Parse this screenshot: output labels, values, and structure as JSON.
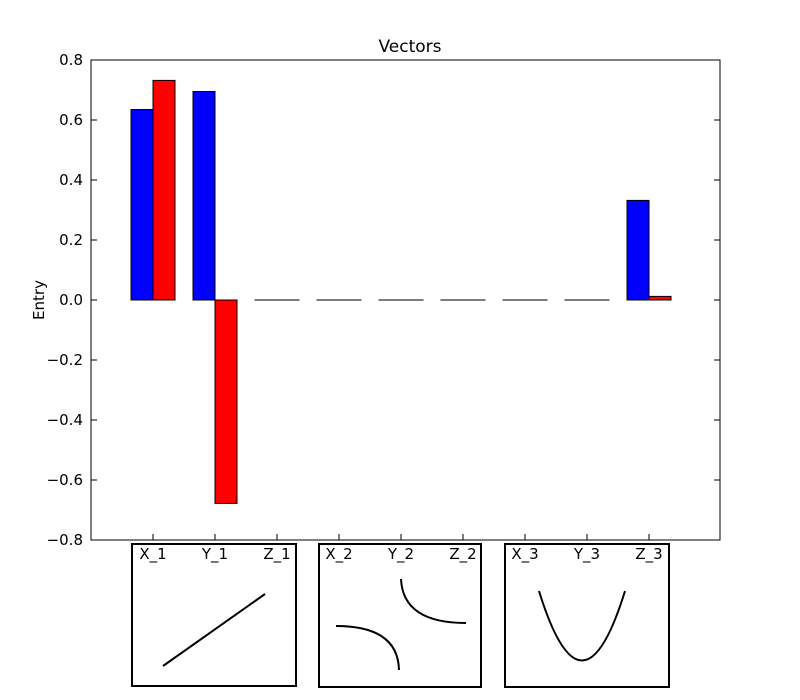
{
  "chart_data": {
    "type": "bar",
    "title": "Vectors",
    "xlabel": "",
    "ylabel": "Entry",
    "ylim": [
      -0.8,
      0.8
    ],
    "yticks": [
      -0.8,
      -0.6,
      -0.4,
      -0.2,
      0.0,
      0.2,
      0.4,
      0.6,
      0.8
    ],
    "ytick_labels": [
      "−0.8",
      "−0.6",
      "−0.4",
      "−0.2",
      "0.0",
      "0.2",
      "0.4",
      "0.6",
      "0.8"
    ],
    "categories": [
      "X_1",
      "Y_1",
      "Z_1",
      "X_2",
      "Y_2",
      "Z_2",
      "X_3",
      "Y_3",
      "Z_3"
    ],
    "series": [
      {
        "color": "#0000ff",
        "values": [
          0.635,
          0.695,
          0.0,
          0.0,
          0.0,
          0.0,
          0.0,
          0.0,
          0.332
        ]
      },
      {
        "color": "#ff0000",
        "values": [
          0.732,
          -0.678,
          0.0,
          0.0,
          0.0,
          0.0,
          0.0,
          0.0,
          0.012
        ]
      }
    ],
    "grid": false,
    "legend": "none",
    "insets": [
      {
        "curve": "line"
      },
      {
        "curve": "hyperbola"
      },
      {
        "curve": "parabola"
      }
    ]
  }
}
